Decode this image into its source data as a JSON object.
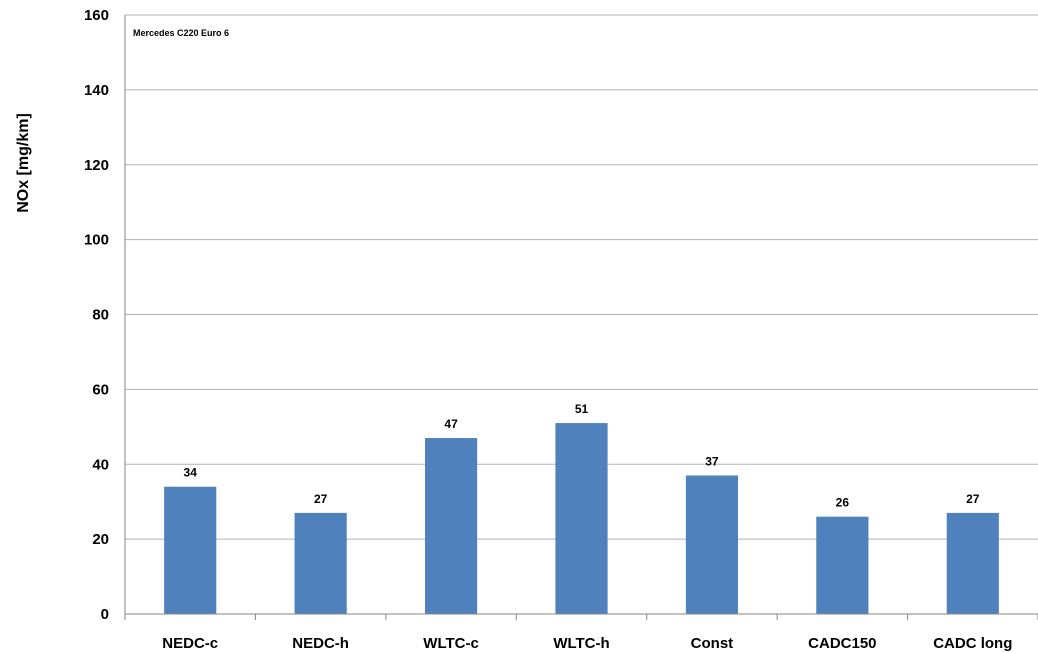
{
  "chart_data": {
    "type": "bar",
    "annotation": "Mercedes C220 Euro 6",
    "xlabel": "",
    "ylabel": "NOx [mg/km]",
    "ylim": [
      0,
      160
    ],
    "yticks": [
      0,
      20,
      40,
      60,
      80,
      100,
      120,
      140,
      160
    ],
    "grid": true,
    "legend": "none",
    "categories": [
      "NEDC-c",
      "NEDC-h",
      "WLTC-c",
      "WLTC-h",
      "Const",
      "CADC150",
      "CADC long"
    ],
    "values": [
      34,
      27,
      47,
      51,
      37,
      26,
      27
    ],
    "colors": {
      "bar": "#4f81bd",
      "grid": "#b3b3b3",
      "axis": "#868686"
    }
  }
}
